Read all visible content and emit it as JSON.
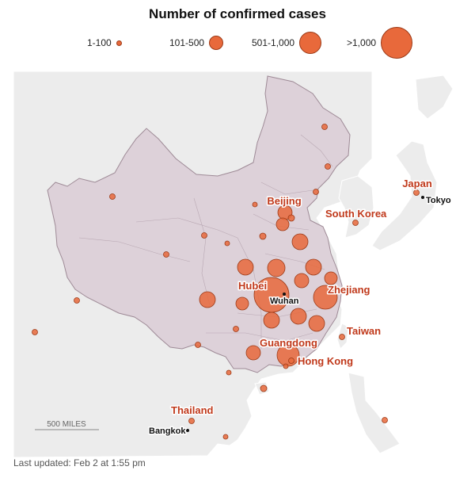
{
  "title": "Number of confirmed cases",
  "legend": [
    {
      "label": "1-100",
      "category": "1-100"
    },
    {
      "label": "101-500",
      "category": "101-500"
    },
    {
      "label": "501-1,000",
      "category": "501-1,000"
    },
    {
      "label": ">1,000",
      "category": ">1,000"
    }
  ],
  "colors": {
    "bubble_fill": "#e8693b",
    "bubble_stroke": "#9c3a17",
    "china_fill": "#ddd1d9",
    "land_fill": "#ededed",
    "water": "#ffffff",
    "label_red": "#c0391b"
  },
  "labels": {
    "beijing": "Beijing",
    "south_korea": "South Korea",
    "japan": "Japan",
    "tokyo": "Tokyo",
    "hubei": "Hubei",
    "wuhan": "Wuhan",
    "zhejiang": "Zhejiang",
    "taiwan": "Taiwan",
    "guangdong": "Guangdong",
    "hong_kong": "Hong Kong",
    "thailand": "Thailand",
    "bangkok": "Bangkok"
  },
  "scale_label": "500 MILES",
  "footer": "Last updated: Feb 2 at 1:55 pm"
}
